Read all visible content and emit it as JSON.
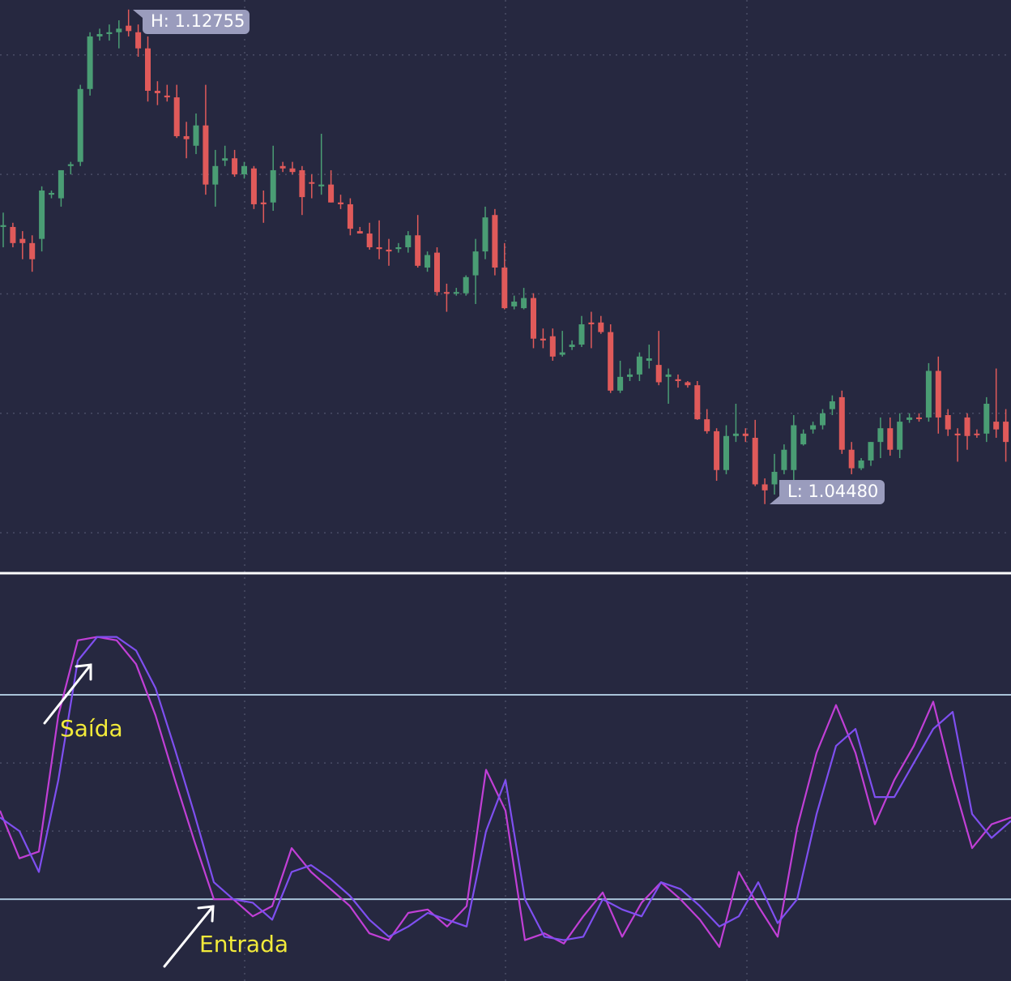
{
  "chart_data": [
    {
      "type": "candlestick",
      "ylim": [
        1.0335,
        1.1292
      ],
      "gridlines": [
        1.12,
        1.1,
        1.08,
        1.06,
        1.04
      ],
      "up_color": "#4a9d74",
      "down_color": "#e05a5a",
      "annotations": [
        "H: 1.12755",
        "L: 1.04480"
      ],
      "candles": [
        [
          1.0912,
          1.0936,
          1.0878,
          1.0915
        ],
        [
          1.0912,
          1.0919,
          1.0878,
          1.0885
        ],
        [
          1.0892,
          1.0905,
          1.0858,
          1.0885
        ],
        [
          1.0885,
          1.0898,
          1.0837,
          1.0858
        ],
        [
          1.0892,
          1.098,
          1.0871,
          1.0973
        ],
        [
          1.0966,
          1.0973,
          1.096,
          1.0969
        ],
        [
          1.096,
          1.1007,
          1.0946,
          1.1007
        ],
        [
          1.1014,
          1.1021,
          1.1,
          1.1017
        ],
        [
          1.1021,
          1.115,
          1.1014,
          1.1143
        ],
        [
          1.1143,
          1.1238,
          1.1132,
          1.1231
        ],
        [
          1.1231,
          1.1244,
          1.1224,
          1.1235
        ],
        [
          1.1235,
          1.1251,
          1.1224,
          1.1238
        ],
        [
          1.1238,
          1.1258,
          1.1211,
          1.1244
        ],
        [
          1.1249,
          1.1276,
          1.1231,
          1.124
        ],
        [
          1.1238,
          1.1251,
          1.1197,
          1.1211
        ],
        [
          1.1211,
          1.1231,
          1.1122,
          1.114
        ],
        [
          1.114,
          1.1156,
          1.1116,
          1.1136
        ],
        [
          1.1132,
          1.115,
          1.1122,
          1.1129
        ],
        [
          1.1129,
          1.115,
          1.1061,
          1.1064
        ],
        [
          1.1064,
          1.1088,
          1.1027,
          1.1059
        ],
        [
          1.1048,
          1.1102,
          1.1034,
          1.1082
        ],
        [
          1.1082,
          1.115,
          1.0966,
          1.0983
        ],
        [
          1.0983,
          1.1041,
          1.0946,
          1.1014
        ],
        [
          1.1023,
          1.1048,
          1.1014,
          1.1027
        ],
        [
          1.1027,
          1.1041,
          1.0996,
          1.1
        ],
        [
          1.1,
          1.1021,
          1.0993,
          1.1014
        ],
        [
          1.101,
          1.1014,
          1.0942,
          1.095
        ],
        [
          1.0953,
          1.0973,
          1.0919,
          1.095
        ],
        [
          1.0953,
          1.1048,
          1.0939,
          1.1007
        ],
        [
          1.1014,
          1.1021,
          1.1004,
          1.101
        ],
        [
          1.101,
          1.1021,
          1.1,
          1.1004
        ],
        [
          1.1007,
          1.1014,
          1.0932,
          1.0962
        ],
        [
          1.0987,
          1.1,
          1.096,
          1.0985
        ],
        [
          1.098,
          1.1068,
          1.0966,
          1.0983
        ],
        [
          1.0983,
          1.1007,
          1.0953,
          1.0953
        ],
        [
          1.0953,
          1.0966,
          1.0942,
          1.095
        ],
        [
          1.095,
          1.096,
          1.0898,
          1.0909
        ],
        [
          1.0905,
          1.0912,
          1.0901,
          1.0901
        ],
        [
          1.0901,
          1.0919,
          1.0874,
          1.0878
        ],
        [
          1.0878,
          1.0923,
          1.0858,
          1.0875
        ],
        [
          1.0874,
          1.0892,
          1.0847,
          1.0871
        ],
        [
          1.0875,
          1.0885,
          1.0869,
          1.0878
        ],
        [
          1.0878,
          1.0905,
          1.0869,
          1.0898
        ],
        [
          1.0898,
          1.0932,
          1.0844,
          1.0847
        ],
        [
          1.0844,
          1.0871,
          1.0837,
          1.0865
        ],
        [
          1.0869,
          1.0878,
          1.0797,
          1.0803
        ],
        [
          1.0803,
          1.0817,
          1.077,
          1.0801
        ],
        [
          1.0801,
          1.081,
          1.0797,
          1.0803
        ],
        [
          1.0801,
          1.0831,
          1.0797,
          1.0828
        ],
        [
          1.0831,
          1.0892,
          1.0783,
          1.0871
        ],
        [
          1.0871,
          1.0946,
          1.0858,
          1.0928
        ],
        [
          1.0932,
          1.0942,
          1.0831,
          1.0844
        ],
        [
          1.0844,
          1.0885,
          1.0774,
          1.0776
        ],
        [
          1.0779,
          1.0797,
          1.0774,
          1.0787
        ],
        [
          1.0776,
          1.081,
          1.0774,
          1.0793
        ],
        [
          1.0793,
          1.0801,
          1.0709,
          1.0725
        ],
        [
          1.0725,
          1.0742,
          1.0709,
          1.0722
        ],
        [
          1.0729,
          1.0742,
          1.0688,
          1.0695
        ],
        [
          1.0698,
          1.0738,
          1.0695,
          1.0702
        ],
        [
          1.0711,
          1.0722,
          1.0706,
          1.0715
        ],
        [
          1.0715,
          1.0763,
          1.0711,
          1.0749
        ],
        [
          1.0752,
          1.077,
          1.0709,
          1.0749
        ],
        [
          1.0752,
          1.0763,
          1.0733,
          1.0736
        ],
        [
          1.0736,
          1.0749,
          1.0634,
          1.0638
        ],
        [
          1.0638,
          1.0688,
          1.0634,
          1.0661
        ],
        [
          1.0661,
          1.0675,
          1.0654,
          1.0665
        ],
        [
          1.0665,
          1.0702,
          1.0654,
          1.0695
        ],
        [
          1.0688,
          1.0715,
          1.0675,
          1.0692
        ],
        [
          1.0681,
          1.0738,
          1.0647,
          1.0652
        ],
        [
          1.0661,
          1.0675,
          1.0616,
          1.0665
        ],
        [
          1.0657,
          1.0665,
          1.0643,
          1.0654
        ],
        [
          1.0652,
          1.0654,
          1.0643,
          1.0647
        ],
        [
          1.0647,
          1.0654,
          1.0589,
          1.059
        ],
        [
          1.059,
          1.0607,
          1.0566,
          1.057
        ],
        [
          1.057,
          1.0575,
          1.0487,
          1.0505
        ],
        [
          1.0505,
          1.058,
          1.0498,
          1.0562
        ],
        [
          1.0562,
          1.0616,
          1.0552,
          1.0566
        ],
        [
          1.0566,
          1.0575,
          1.0552,
          1.0562
        ],
        [
          1.0559,
          1.0589,
          1.0478,
          1.0481
        ],
        [
          1.0481,
          1.0491,
          1.0448,
          1.0471
        ],
        [
          1.0481,
          1.0532,
          1.0464,
          1.0502
        ],
        [
          1.0505,
          1.0548,
          1.0498,
          1.0539
        ],
        [
          1.0505,
          1.0597,
          1.0481,
          1.058
        ],
        [
          1.0548,
          1.0573,
          1.0546,
          1.0566
        ],
        [
          1.0573,
          1.0586,
          1.0566,
          1.058
        ],
        [
          1.058,
          1.0607,
          1.0573,
          1.06
        ],
        [
          1.0607,
          1.063,
          1.0597,
          1.062
        ],
        [
          1.0627,
          1.0638,
          1.0532,
          1.0539
        ],
        [
          1.0539,
          1.0552,
          1.0498,
          1.0508
        ],
        [
          1.0508,
          1.0525,
          1.0505,
          1.0521
        ],
        [
          1.0521,
          1.0552,
          1.0512,
          1.0552
        ],
        [
          1.0552,
          1.0593,
          1.0525,
          1.0575
        ],
        [
          1.0575,
          1.0593,
          1.0529,
          1.0539
        ],
        [
          1.0539,
          1.06,
          1.0525,
          1.0586
        ],
        [
          1.0589,
          1.06,
          1.0584,
          1.0593
        ],
        [
          1.0593,
          1.06,
          1.0586,
          1.0592
        ],
        [
          1.0593,
          1.0684,
          1.0586,
          1.0671
        ],
        [
          1.0671,
          1.0695,
          1.0566,
          1.0593
        ],
        [
          1.0597,
          1.0607,
          1.0562,
          1.0573
        ],
        [
          1.0566,
          1.0575,
          1.0519,
          1.0563
        ],
        [
          1.0593,
          1.06,
          1.0539,
          1.0562
        ],
        [
          1.0566,
          1.0573,
          1.0559,
          1.0565
        ],
        [
          1.0566,
          1.0627,
          1.0552,
          1.0616
        ],
        [
          1.0586,
          1.0675,
          1.0559,
          1.0573
        ],
        [
          1.0586,
          1.0607,
          1.0519,
          1.0552
        ]
      ]
    },
    {
      "type": "line",
      "ylim": [
        -4,
        115
      ],
      "levels": [
        80,
        20
      ],
      "level_color": "#a9c3d9",
      "gridlines": [
        60,
        40
      ],
      "annotations": [
        "Saída",
        "Entrada"
      ],
      "series": [
        {
          "color": "#c13fd6",
          "values": [
            46,
            32,
            34,
            74,
            96,
            97,
            96,
            89,
            74,
            55,
            37,
            20,
            20,
            15,
            18,
            35,
            28,
            23,
            18,
            10,
            8,
            16,
            17,
            12,
            18,
            58,
            46,
            8,
            10,
            7,
            15,
            22,
            9,
            19,
            25,
            20,
            14,
            6,
            28,
            18,
            9,
            41,
            63,
            77,
            63,
            42,
            55,
            65,
            78,
            55,
            35,
            42,
            44
          ]
        },
        {
          "color": "#7f4ff0",
          "values": [
            44,
            40,
            28,
            55,
            90,
            97,
            97,
            93,
            82,
            64,
            45,
            25,
            20,
            19,
            14,
            28,
            30,
            26,
            21,
            14,
            9,
            12,
            16,
            14,
            12,
            40,
            55,
            20,
            9,
            8,
            9,
            20,
            17,
            15,
            25,
            23,
            18,
            12,
            15,
            25,
            13,
            20,
            45,
            65,
            70,
            50,
            50,
            60,
            70,
            75,
            45,
            38,
            43
          ]
        }
      ]
    }
  ]
}
